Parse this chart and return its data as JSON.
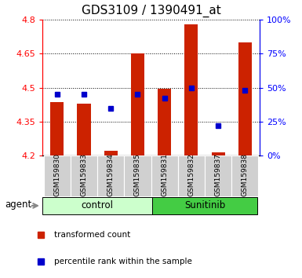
{
  "title": "GDS3109 / 1390491_at",
  "samples": [
    "GSM159830",
    "GSM159833",
    "GSM159834",
    "GSM159835",
    "GSM159831",
    "GSM159832",
    "GSM159837",
    "GSM159838"
  ],
  "bar_bottom": 4.2,
  "bar_tops": [
    4.435,
    4.43,
    4.22,
    4.65,
    4.495,
    4.78,
    4.215,
    4.7
  ],
  "percentile_ranks": [
    45,
    45,
    35,
    45,
    42,
    50,
    22,
    48
  ],
  "ylim_left": [
    4.2,
    4.8
  ],
  "ylim_right": [
    0,
    100
  ],
  "yticks_left": [
    4.2,
    4.35,
    4.5,
    4.65,
    4.8
  ],
  "ytick_labels_left": [
    "4.2",
    "4.35",
    "4.5",
    "4.65",
    "4.8"
  ],
  "yticks_right": [
    0,
    25,
    50,
    75,
    100
  ],
  "ytick_labels_right": [
    "0%",
    "25%",
    "50%",
    "75%",
    "100%"
  ],
  "bar_color": "#cc2200",
  "dot_color": "#0000cc",
  "control_bg": "#ccffcc",
  "sunitinib_bg": "#44cc44",
  "control_label": "control",
  "sunitinib_label": "Sunitinib",
  "agent_label": "agent",
  "legend_bar_label": "transformed count",
  "legend_dot_label": "percentile rank within the sample",
  "sample_bg": "#d0d0d0",
  "title_fontsize": 11,
  "tick_fontsize": 8,
  "bar_width": 0.5
}
